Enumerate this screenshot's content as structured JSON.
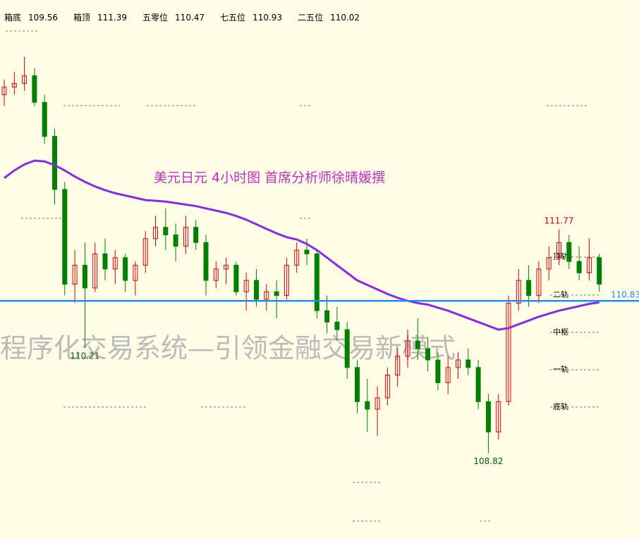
{
  "chart_data": {
    "type": "candlestick",
    "title": "美元日元 4小时图  首席分析师徐晴媛撰",
    "watermark": "程序化交易系统—引领金融交易新模式",
    "levels": [
      {
        "name": "箱底",
        "value": 109.56
      },
      {
        "name": "箱顶",
        "value": 111.39
      },
      {
        "name": "五零位",
        "value": 110.47
      },
      {
        "name": "七五位",
        "value": 110.93
      },
      {
        "name": "二五位",
        "value": 110.02
      }
    ],
    "channel_labels": [
      "顶轨",
      "二轨",
      "中枢",
      "一轨",
      "底轨"
    ],
    "ylim": [
      107.7,
      114.8
    ],
    "up_color": "#e00000",
    "down_color": "#008000",
    "hline": 110.83,
    "hline_color": "#1e8fff",
    "candles": [
      {
        "o": 113.55,
        "h": 113.75,
        "l": 113.4,
        "c": 113.65
      },
      {
        "o": 113.65,
        "h": 113.85,
        "l": 113.55,
        "c": 113.7
      },
      {
        "o": 113.7,
        "h": 114.05,
        "l": 113.6,
        "c": 113.8
      },
      {
        "o": 113.8,
        "h": 113.9,
        "l": 113.4,
        "c": 113.45
      },
      {
        "o": 113.45,
        "h": 113.55,
        "l": 112.9,
        "c": 113.0
      },
      {
        "o": 113.0,
        "h": 113.1,
        "l": 112.1,
        "c": 112.3
      },
      {
        "o": 112.3,
        "h": 112.4,
        "l": 110.9,
        "c": 111.05
      },
      {
        "o": 111.05,
        "h": 111.5,
        "l": 110.8,
        "c": 111.3
      },
      {
        "o": 111.3,
        "h": 111.6,
        "l": 110.21,
        "c": 111.0
      },
      {
        "o": 111.0,
        "h": 111.6,
        "l": 110.95,
        "c": 111.45
      },
      {
        "o": 111.45,
        "h": 111.65,
        "l": 111.1,
        "c": 111.25
      },
      {
        "o": 111.25,
        "h": 111.5,
        "l": 111.05,
        "c": 111.4
      },
      {
        "o": 111.4,
        "h": 111.45,
        "l": 110.95,
        "c": 111.1
      },
      {
        "o": 111.1,
        "h": 111.35,
        "l": 110.9,
        "c": 111.3
      },
      {
        "o": 111.3,
        "h": 111.75,
        "l": 111.2,
        "c": 111.65
      },
      {
        "o": 111.65,
        "h": 111.95,
        "l": 111.55,
        "c": 111.8
      },
      {
        "o": 111.8,
        "h": 112.05,
        "l": 111.5,
        "c": 111.7
      },
      {
        "o": 111.7,
        "h": 111.85,
        "l": 111.35,
        "c": 111.55
      },
      {
        "o": 111.55,
        "h": 111.95,
        "l": 111.45,
        "c": 111.8
      },
      {
        "o": 111.8,
        "h": 111.9,
        "l": 111.5,
        "c": 111.6
      },
      {
        "o": 111.6,
        "h": 111.7,
        "l": 110.9,
        "c": 111.1
      },
      {
        "o": 111.1,
        "h": 111.35,
        "l": 111.0,
        "c": 111.25
      },
      {
        "o": 111.25,
        "h": 111.4,
        "l": 111.05,
        "c": 111.3
      },
      {
        "o": 111.3,
        "h": 111.35,
        "l": 110.9,
        "c": 110.95
      },
      {
        "o": 110.95,
        "h": 111.2,
        "l": 110.7,
        "c": 111.1
      },
      {
        "o": 111.1,
        "h": 111.25,
        "l": 110.75,
        "c": 110.85
      },
      {
        "o": 110.85,
        "h": 111.05,
        "l": 110.7,
        "c": 110.95
      },
      {
        "o": 110.95,
        "h": 111.1,
        "l": 110.6,
        "c": 110.9
      },
      {
        "o": 110.9,
        "h": 111.4,
        "l": 110.85,
        "c": 111.3
      },
      {
        "o": 111.3,
        "h": 111.6,
        "l": 111.2,
        "c": 111.5
      },
      {
        "o": 111.5,
        "h": 111.65,
        "l": 111.3,
        "c": 111.45
      },
      {
        "o": 111.45,
        "h": 111.5,
        "l": 110.6,
        "c": 110.7
      },
      {
        "o": 110.7,
        "h": 110.9,
        "l": 110.4,
        "c": 110.55
      },
      {
        "o": 110.55,
        "h": 110.75,
        "l": 110.3,
        "c": 110.45
      },
      {
        "o": 110.45,
        "h": 110.55,
        "l": 109.8,
        "c": 109.95
      },
      {
        "o": 109.95,
        "h": 110.05,
        "l": 109.35,
        "c": 109.5
      },
      {
        "o": 109.5,
        "h": 109.8,
        "l": 109.1,
        "c": 109.4
      },
      {
        "o": 109.4,
        "h": 109.7,
        "l": 109.05,
        "c": 109.55
      },
      {
        "o": 109.55,
        "h": 109.95,
        "l": 109.45,
        "c": 109.85
      },
      {
        "o": 109.85,
        "h": 110.2,
        "l": 109.7,
        "c": 110.1
      },
      {
        "o": 110.1,
        "h": 110.45,
        "l": 109.95,
        "c": 110.3
      },
      {
        "o": 110.3,
        "h": 110.6,
        "l": 110.05,
        "c": 110.2
      },
      {
        "o": 110.2,
        "h": 110.35,
        "l": 109.9,
        "c": 110.05
      },
      {
        "o": 110.05,
        "h": 110.15,
        "l": 109.65,
        "c": 109.75
      },
      {
        "o": 109.75,
        "h": 110.1,
        "l": 109.6,
        "c": 109.95
      },
      {
        "o": 109.95,
        "h": 110.15,
        "l": 109.8,
        "c": 110.05
      },
      {
        "o": 110.05,
        "h": 110.2,
        "l": 109.85,
        "c": 109.95
      },
      {
        "o": 109.95,
        "h": 110.05,
        "l": 109.4,
        "c": 109.5
      },
      {
        "o": 109.5,
        "h": 109.6,
        "l": 108.82,
        "c": 109.1
      },
      {
        "o": 109.1,
        "h": 109.6,
        "l": 109.0,
        "c": 109.5
      },
      {
        "o": 109.5,
        "h": 110.9,
        "l": 109.45,
        "c": 110.8
      },
      {
        "o": 110.8,
        "h": 111.25,
        "l": 110.7,
        "c": 111.1
      },
      {
        "o": 111.1,
        "h": 111.3,
        "l": 110.75,
        "c": 110.9
      },
      {
        "o": 110.9,
        "h": 111.35,
        "l": 110.8,
        "c": 111.25
      },
      {
        "o": 111.25,
        "h": 111.55,
        "l": 111.1,
        "c": 111.4
      },
      {
        "o": 111.4,
        "h": 111.77,
        "l": 111.3,
        "c": 111.6
      },
      {
        "o": 111.6,
        "h": 111.7,
        "l": 111.25,
        "c": 111.35
      },
      {
        "o": 111.35,
        "h": 111.55,
        "l": 111.1,
        "c": 111.2
      },
      {
        "o": 111.2,
        "h": 111.65,
        "l": 111.1,
        "c": 111.4
      },
      {
        "o": 111.4,
        "h": 111.45,
        "l": 110.95,
        "c": 111.05
      }
    ],
    "series": [
      {
        "color": "#8a2be2",
        "values": [
          112.45,
          112.55,
          112.63,
          112.68,
          112.67,
          112.62,
          112.55,
          112.47,
          112.4,
          112.34,
          112.29,
          112.25,
          112.22,
          112.19,
          112.16,
          112.15,
          112.14,
          112.12,
          112.1,
          112.08,
          112.05,
          112.02,
          111.99,
          111.95,
          111.9,
          111.84,
          111.78,
          111.72,
          111.67,
          111.64,
          111.58,
          111.5,
          111.4,
          111.3,
          111.2,
          111.1,
          111.04,
          110.98,
          110.92,
          110.87,
          110.83,
          110.8,
          110.78,
          110.74,
          110.7,
          110.65,
          110.6,
          110.55,
          110.5,
          110.45,
          110.47,
          110.52,
          110.57,
          110.62,
          110.66,
          110.7,
          110.73,
          110.76,
          110.79,
          110.81
        ]
      }
    ]
  }
}
